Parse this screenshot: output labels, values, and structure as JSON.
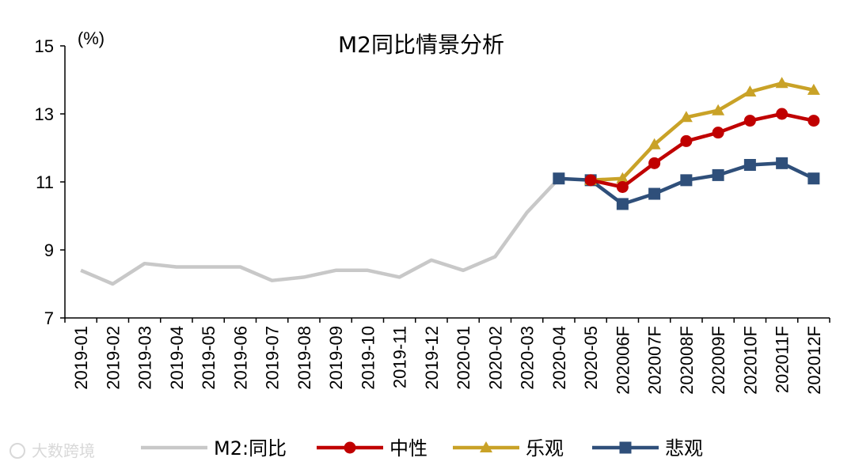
{
  "chart_data": {
    "type": "line",
    "title": "M2同比情景分析",
    "unit_label": "(%)",
    "ylim": [
      7,
      15
    ],
    "yticks": [
      7,
      9,
      11,
      13,
      15
    ],
    "grid": false,
    "legend_position": "bottom",
    "categories": [
      "2019-01",
      "2019-02",
      "2019-03",
      "2019-04",
      "2019-05",
      "2019-06",
      "2019-07",
      "2019-08",
      "2019-09",
      "2019-10",
      "2019-11",
      "2019-12",
      "2020-01",
      "2020-02",
      "2020-03",
      "2020-04",
      "2020-05",
      "202006F",
      "202007F",
      "202008F",
      "202009F",
      "202010F",
      "202011F",
      "202012F"
    ],
    "series": [
      {
        "name": "M2:同比",
        "color": "#c8c8c8",
        "marker": "none",
        "values": [
          8.4,
          8.0,
          8.6,
          8.5,
          8.5,
          8.5,
          8.1,
          8.2,
          8.4,
          8.4,
          8.2,
          8.7,
          8.4,
          8.8,
          10.1,
          11.1,
          null,
          null,
          null,
          null,
          null,
          null,
          null,
          null
        ]
      },
      {
        "name": "中性",
        "color": "#c00000",
        "marker": "circle",
        "values": [
          null,
          null,
          null,
          null,
          null,
          null,
          null,
          null,
          null,
          null,
          null,
          null,
          null,
          null,
          null,
          null,
          11.05,
          10.85,
          11.55,
          12.2,
          12.45,
          12.8,
          13.0,
          12.8
        ]
      },
      {
        "name": "乐观",
        "color": "#c9a227",
        "marker": "triangle",
        "values": [
          null,
          null,
          null,
          null,
          null,
          null,
          null,
          null,
          null,
          null,
          null,
          null,
          null,
          null,
          null,
          null,
          11.05,
          11.1,
          12.1,
          12.9,
          13.1,
          13.65,
          13.9,
          13.7
        ]
      },
      {
        "name": "悲观",
        "color": "#2f4f7a",
        "marker": "square",
        "values": [
          null,
          null,
          null,
          null,
          null,
          null,
          null,
          null,
          null,
          null,
          null,
          null,
          null,
          null,
          null,
          11.1,
          11.05,
          10.35,
          10.65,
          11.05,
          11.2,
          11.5,
          11.55,
          11.1
        ]
      }
    ]
  },
  "watermark": "大数跨境"
}
